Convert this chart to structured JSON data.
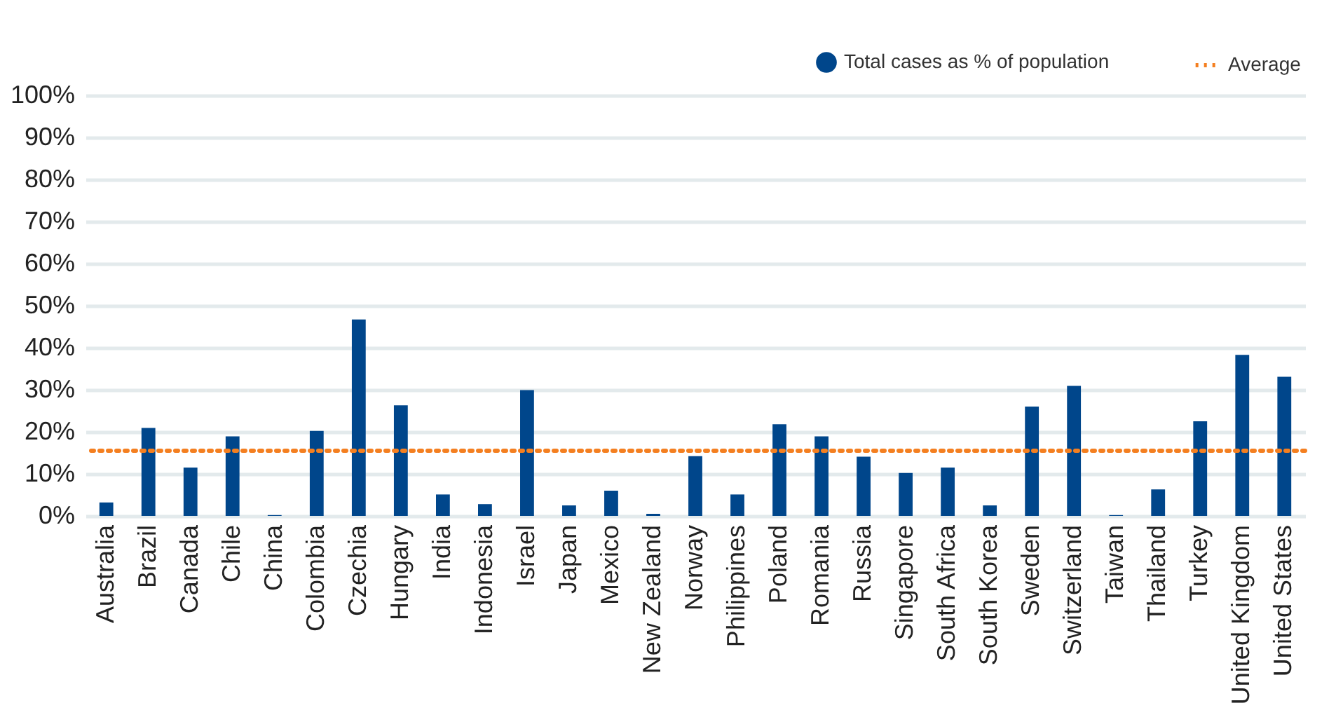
{
  "chart_data": {
    "type": "bar",
    "categories": [
      "Australia",
      "Brazil",
      "Canada",
      "Chile",
      "China",
      "Colombia",
      "Czechia",
      "Hungary",
      "India",
      "Indonesia",
      "Israel",
      "Japan",
      "Mexico",
      "New Zealand",
      "Norway",
      "Philippines",
      "Poland",
      "Romania",
      "Russia",
      "Singapore",
      "South Africa",
      "South Korea",
      "Sweden",
      "Switzerland",
      "Taiwan",
      "Thailand",
      "Turkey",
      "United Kingdom",
      "United States"
    ],
    "series": [
      {
        "name": "Total cases as % of population",
        "color": "#00468b",
        "values": [
          3.2,
          20.9,
          11.5,
          18.9,
          0.2,
          20.2,
          46.7,
          26.3,
          5.1,
          2.8,
          29.9,
          2.5,
          6.0,
          0.5,
          14.2,
          5.1,
          21.8,
          18.9,
          14.1,
          10.2,
          11.5,
          2.5,
          26.0,
          30.9,
          0.2,
          6.3,
          22.5,
          38.3,
          33.1
        ]
      }
    ],
    "ylim": [
      0,
      100
    ],
    "yticks": [
      {
        "value": 0,
        "label": "0%"
      },
      {
        "value": 10,
        "label": "10%"
      },
      {
        "value": 20,
        "label": "20%"
      },
      {
        "value": 30,
        "label": "30%"
      },
      {
        "value": 40,
        "label": "40%"
      },
      {
        "value": 50,
        "label": "50%"
      },
      {
        "value": 60,
        "label": "60%"
      },
      {
        "value": 70,
        "label": "70%"
      },
      {
        "value": 80,
        "label": "80%"
      },
      {
        "value": 90,
        "label": "90%"
      },
      {
        "value": 100,
        "label": "100%"
      }
    ],
    "ref_lines": [
      {
        "axis": "y",
        "value": 15.5,
        "label": "Average",
        "color": "#f47f20",
        "line_style": "dotted"
      }
    ],
    "grid": "y",
    "legend": "top right"
  }
}
